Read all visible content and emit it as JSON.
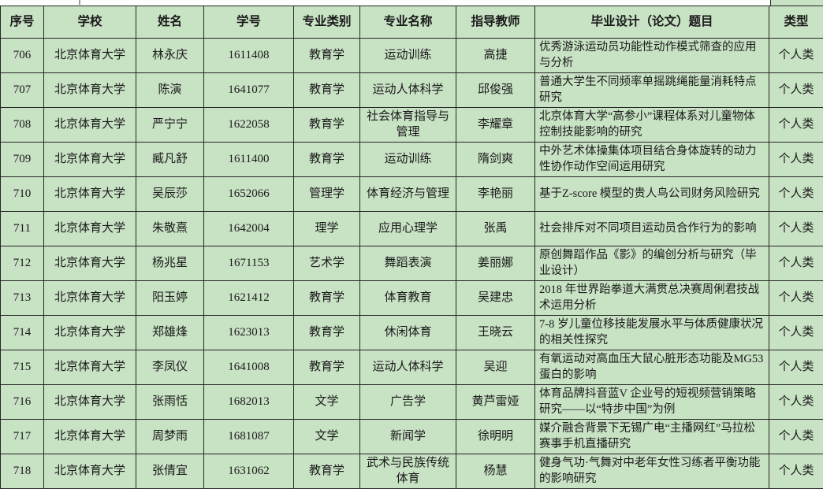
{
  "table": {
    "columns": [
      {
        "key": "row-number",
        "label": "序号"
      },
      {
        "key": "school",
        "label": "学校"
      },
      {
        "key": "student-name",
        "label": "姓名"
      },
      {
        "key": "student-id",
        "label": "学号"
      },
      {
        "key": "major-category",
        "label": "专业类别"
      },
      {
        "key": "major-name",
        "label": "专业名称"
      },
      {
        "key": "advisor",
        "label": "指导教师"
      },
      {
        "key": "thesis-title",
        "label": "毕业设计（论文）题目"
      },
      {
        "key": "type",
        "label": "类型"
      }
    ],
    "rows": [
      [
        "706",
        "北京体育大学",
        "林永庆",
        "1611408",
        "教育学",
        "运动训练",
        "高捷",
        "优秀游泳运动员功能性动作模式筛查的应用与分析",
        "个人类"
      ],
      [
        "707",
        "北京体育大学",
        "陈演",
        "1641077",
        "教育学",
        "运动人体科学",
        "邱俊强",
        "普通大学生不同频率单摇跳绳能量消耗特点研究",
        "个人类"
      ],
      [
        "708",
        "北京体育大学",
        "严宁宁",
        "1622058",
        "教育学",
        "社会体育指导与管理",
        "李耀章",
        "北京体育大学“高参小”课程体系对儿童物体控制技能影响的研究",
        "个人类"
      ],
      [
        "709",
        "北京体育大学",
        "臧凡舒",
        "1611400",
        "教育学",
        "运动训练",
        "隋剑爽",
        "中外艺术体操集体项目结合身体旋转的动力性协作动作空间运用研究",
        "个人类"
      ],
      [
        "710",
        "北京体育大学",
        "吴辰莎",
        "1652066",
        "管理学",
        "体育经济与管理",
        "李艳丽",
        "基于Z-score 模型的贵人鸟公司财务风险研究",
        "个人类"
      ],
      [
        "711",
        "北京体育大学",
        "朱敬熹",
        "1642004",
        "理学",
        "应用心理学",
        "张禹",
        "社会排斥对不同项目运动员合作行为的影响",
        "个人类"
      ],
      [
        "712",
        "北京体育大学",
        "杨兆星",
        "1671153",
        "艺术学",
        "舞蹈表演",
        "姜丽娜",
        "原创舞蹈作品《影》的编创分析与研究（毕业设计）",
        "个人类"
      ],
      [
        "713",
        "北京体育大学",
        "阳玉婷",
        "1621412",
        "教育学",
        "体育教育",
        "吴建忠",
        "2018 年世界跆拳道大满贯总决赛周俐君技战术运用分析",
        "个人类"
      ],
      [
        "714",
        "北京体育大学",
        "郑雄烽",
        "1623013",
        "教育学",
        "休闲体育",
        "王晓云",
        "7-8 岁儿童位移技能发展水平与体质健康状况的相关性探究",
        "个人类"
      ],
      [
        "715",
        "北京体育大学",
        "李凤仪",
        "1641008",
        "教育学",
        "运动人体科学",
        "吴迎",
        "有氧运动对高血压大鼠心脏形态功能及MG53 蛋白的影响",
        "个人类"
      ],
      [
        "716",
        "北京体育大学",
        "张雨恬",
        "1682013",
        "文学",
        "广告学",
        "黄芦雷娅",
        "体育品牌抖音蓝V 企业号的短视频营销策略研究——以“特步中国”为例",
        "个人类"
      ],
      [
        "717",
        "北京体育大学",
        "周梦雨",
        "1681087",
        "文学",
        "新闻学",
        "徐明明",
        "媒介融合背景下无锡广电“主播网红”马拉松赛事手机直播研究",
        "个人类"
      ],
      [
        "718",
        "北京体育大学",
        "张倩宜",
        "1631062",
        "教育学",
        "武术与民族传统体育",
        "杨慧",
        "健身气功·气舞对中老年女性习练者平衡功能的影响研究",
        "个人类"
      ]
    ]
  },
  "colors": {
    "cell_green": "#c8e2c4",
    "grid_line": "#262626",
    "text": "#1a1a1a",
    "page_bg": "#ffffff"
  }
}
